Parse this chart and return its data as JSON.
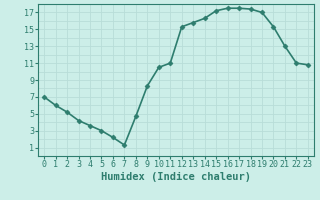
{
  "title": "",
  "xlabel": "Humidex (Indice chaleur)",
  "ylabel": "",
  "x_values": [
    0,
    1,
    2,
    3,
    4,
    5,
    6,
    7,
    8,
    9,
    10,
    11,
    12,
    13,
    14,
    15,
    16,
    17,
    18,
    19,
    20,
    21,
    22,
    23
  ],
  "y_values": [
    7.0,
    6.0,
    5.2,
    4.2,
    3.6,
    3.0,
    2.2,
    1.3,
    4.7,
    8.3,
    10.5,
    11.0,
    15.3,
    15.8,
    16.3,
    17.2,
    17.5,
    17.5,
    17.4,
    17.0,
    15.3,
    13.0,
    11.0,
    10.8
  ],
  "line_color": "#2e7d6e",
  "marker": "D",
  "marker_size": 2.5,
  "background_color": "#cceee8",
  "grid_color": "#b8ddd8",
  "xlim": [
    -0.5,
    23.5
  ],
  "ylim": [
    0,
    18
  ],
  "yticks": [
    1,
    3,
    5,
    7,
    9,
    11,
    13,
    15,
    17
  ],
  "xticks": [
    0,
    1,
    2,
    3,
    4,
    5,
    6,
    7,
    8,
    9,
    10,
    11,
    12,
    13,
    14,
    15,
    16,
    17,
    18,
    19,
    20,
    21,
    22,
    23
  ],
  "tick_fontsize": 6,
  "xlabel_fontsize": 7.5,
  "line_width": 1.2
}
